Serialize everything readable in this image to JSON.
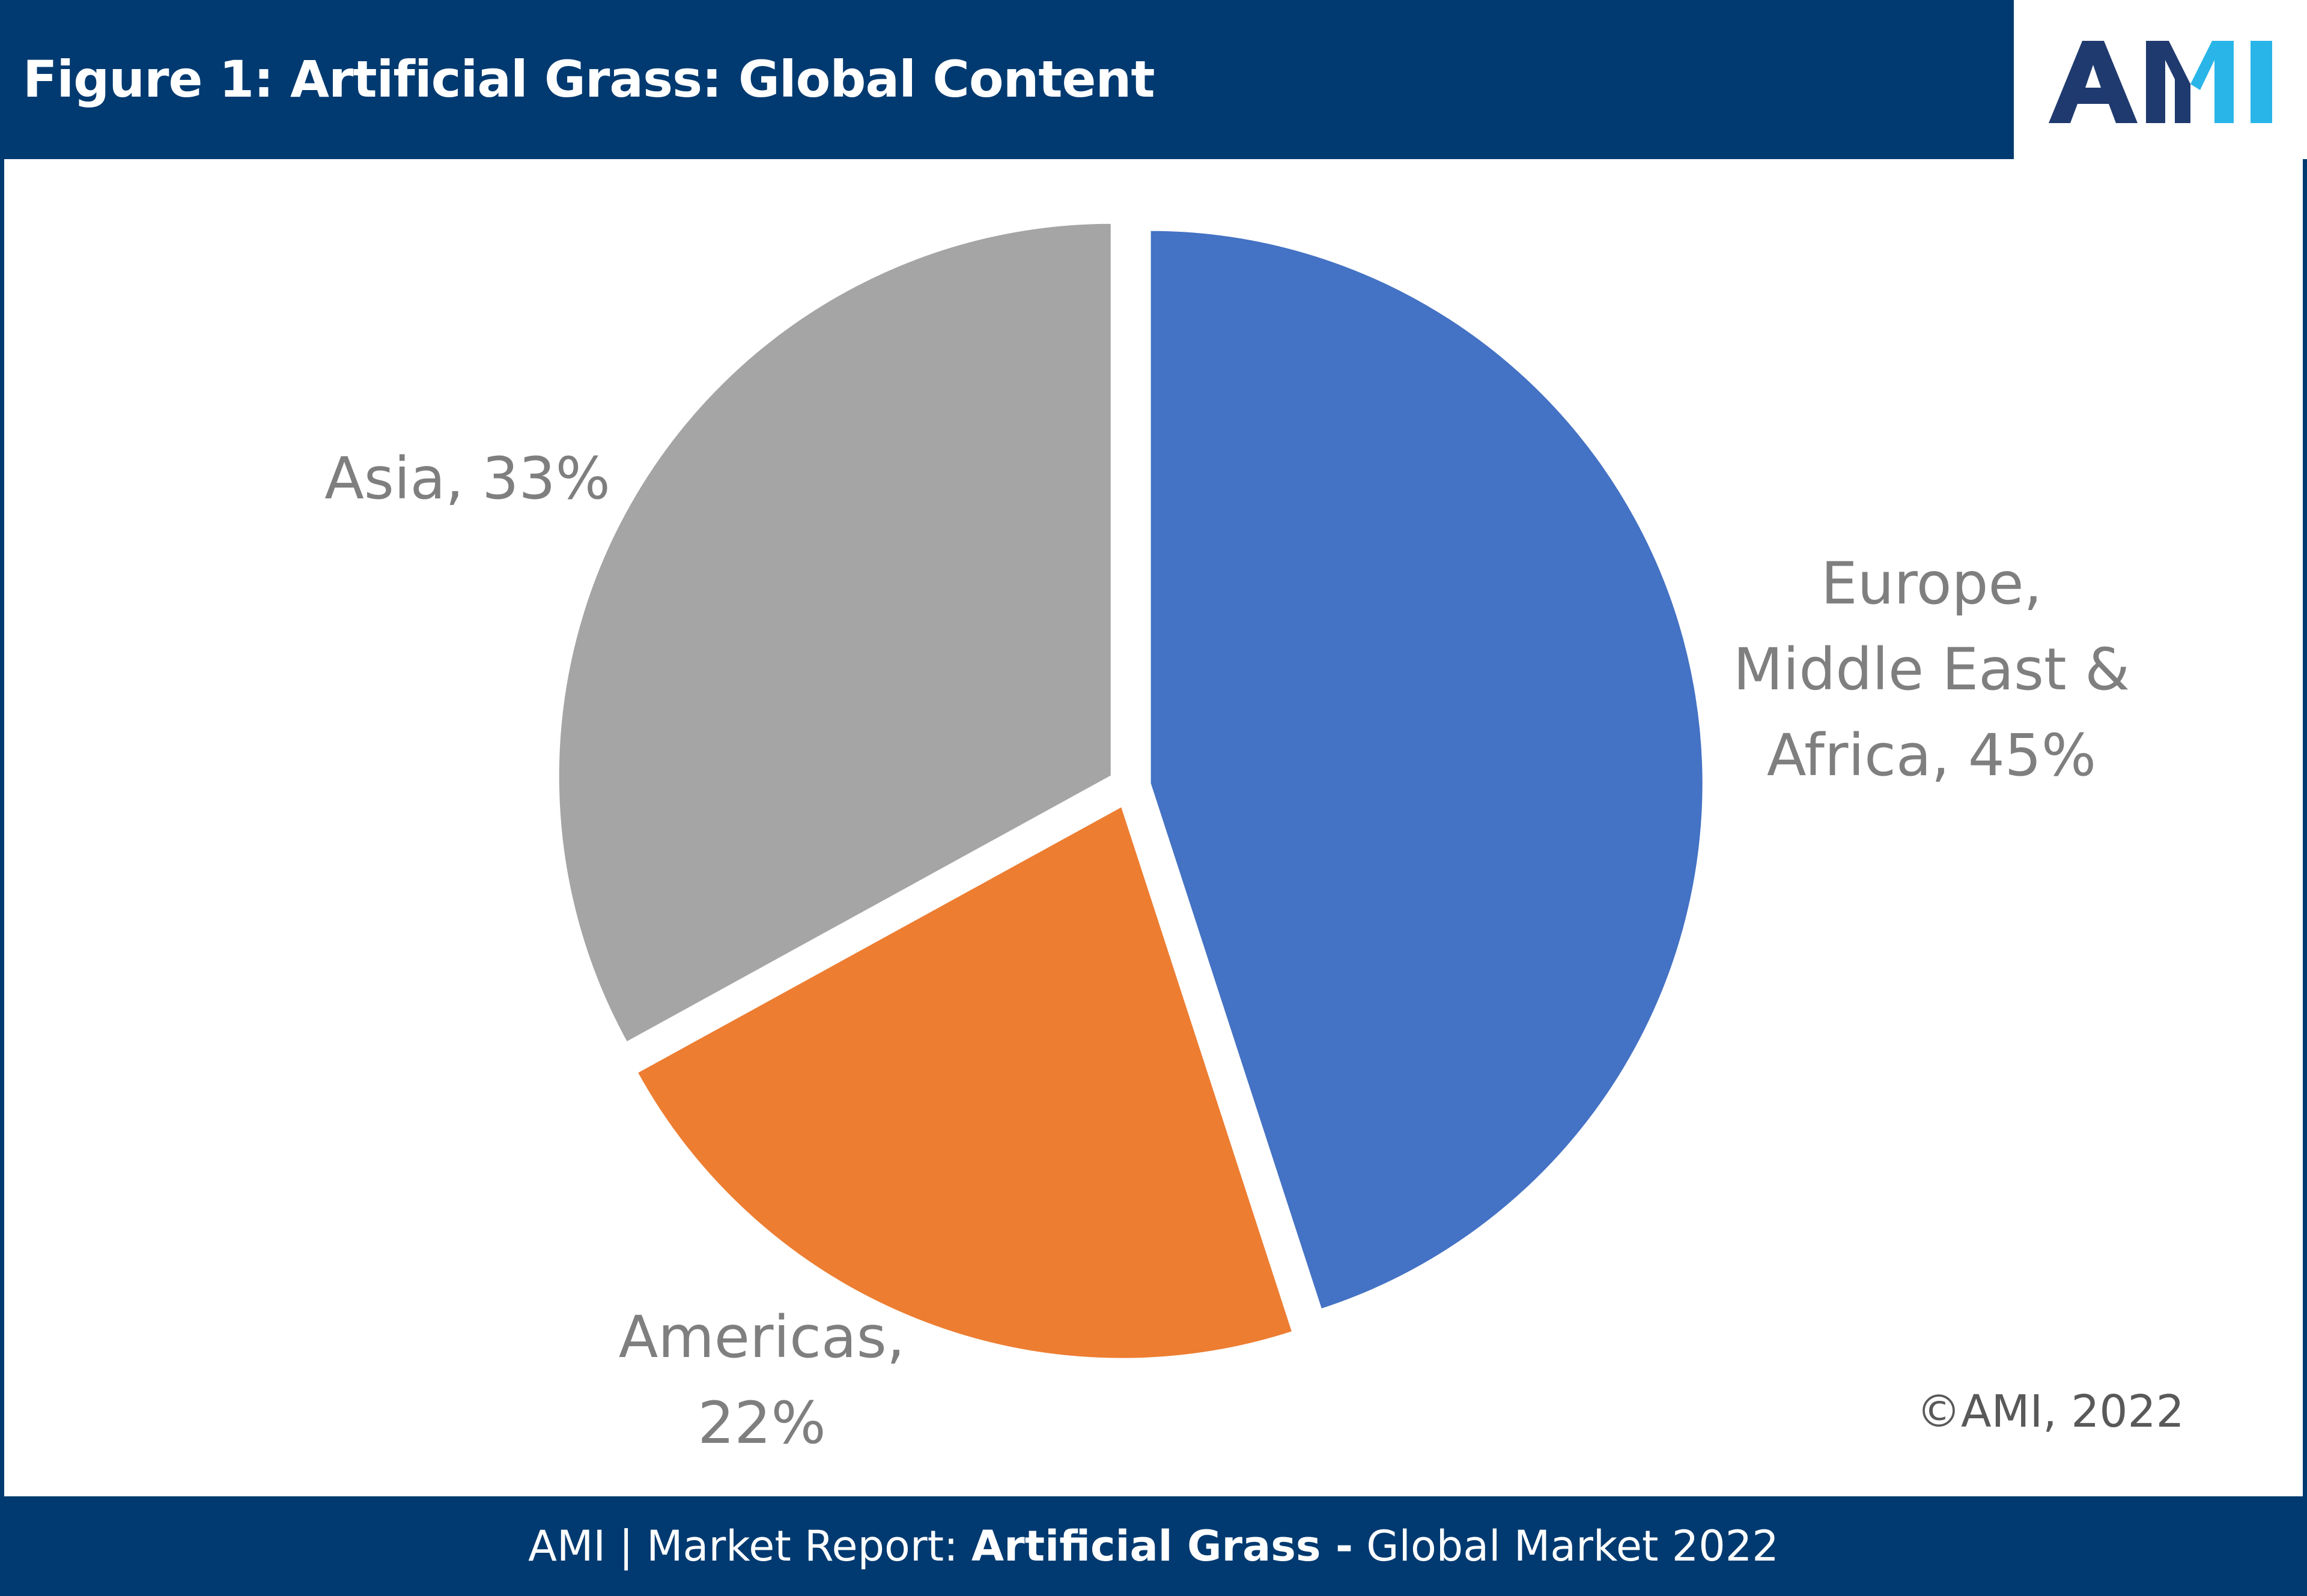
{
  "header": {
    "title": "Figure 1: Artificial Grass: Global Content",
    "logo_text": "AMI"
  },
  "colors": {
    "header_bg": "#003A70",
    "emea": "#4472C4",
    "americas": "#ED7D31",
    "asia": "#A5A5A5",
    "label": "#7F7F7F",
    "logo_dark": "#1F3A6E",
    "logo_accent": "#29B5E8"
  },
  "chart_data": {
    "type": "pie",
    "title": "Figure 1: Artificial Grass: Global Content",
    "categories": [
      "Europe, Middle East & Africa",
      "Americas",
      "Asia"
    ],
    "values": [
      45,
      22,
      33
    ],
    "unit": "%",
    "labels": [
      [
        "Europe,",
        "Middle East &",
        "Africa, 45%"
      ],
      [
        "Americas,",
        "22%"
      ],
      [
        "Asia, 33%"
      ]
    ],
    "colors": [
      "#4472C4",
      "#ED7D31",
      "#A5A5A5"
    ],
    "start": "12 o'clock",
    "direction": "clockwise",
    "exploded": true
  },
  "copyright": "©AMI, 2022",
  "footer": {
    "prefix": "AMI | Market Report: ",
    "bold_title": "Artificial Grass -",
    "suffix": " Global Market 2022"
  }
}
